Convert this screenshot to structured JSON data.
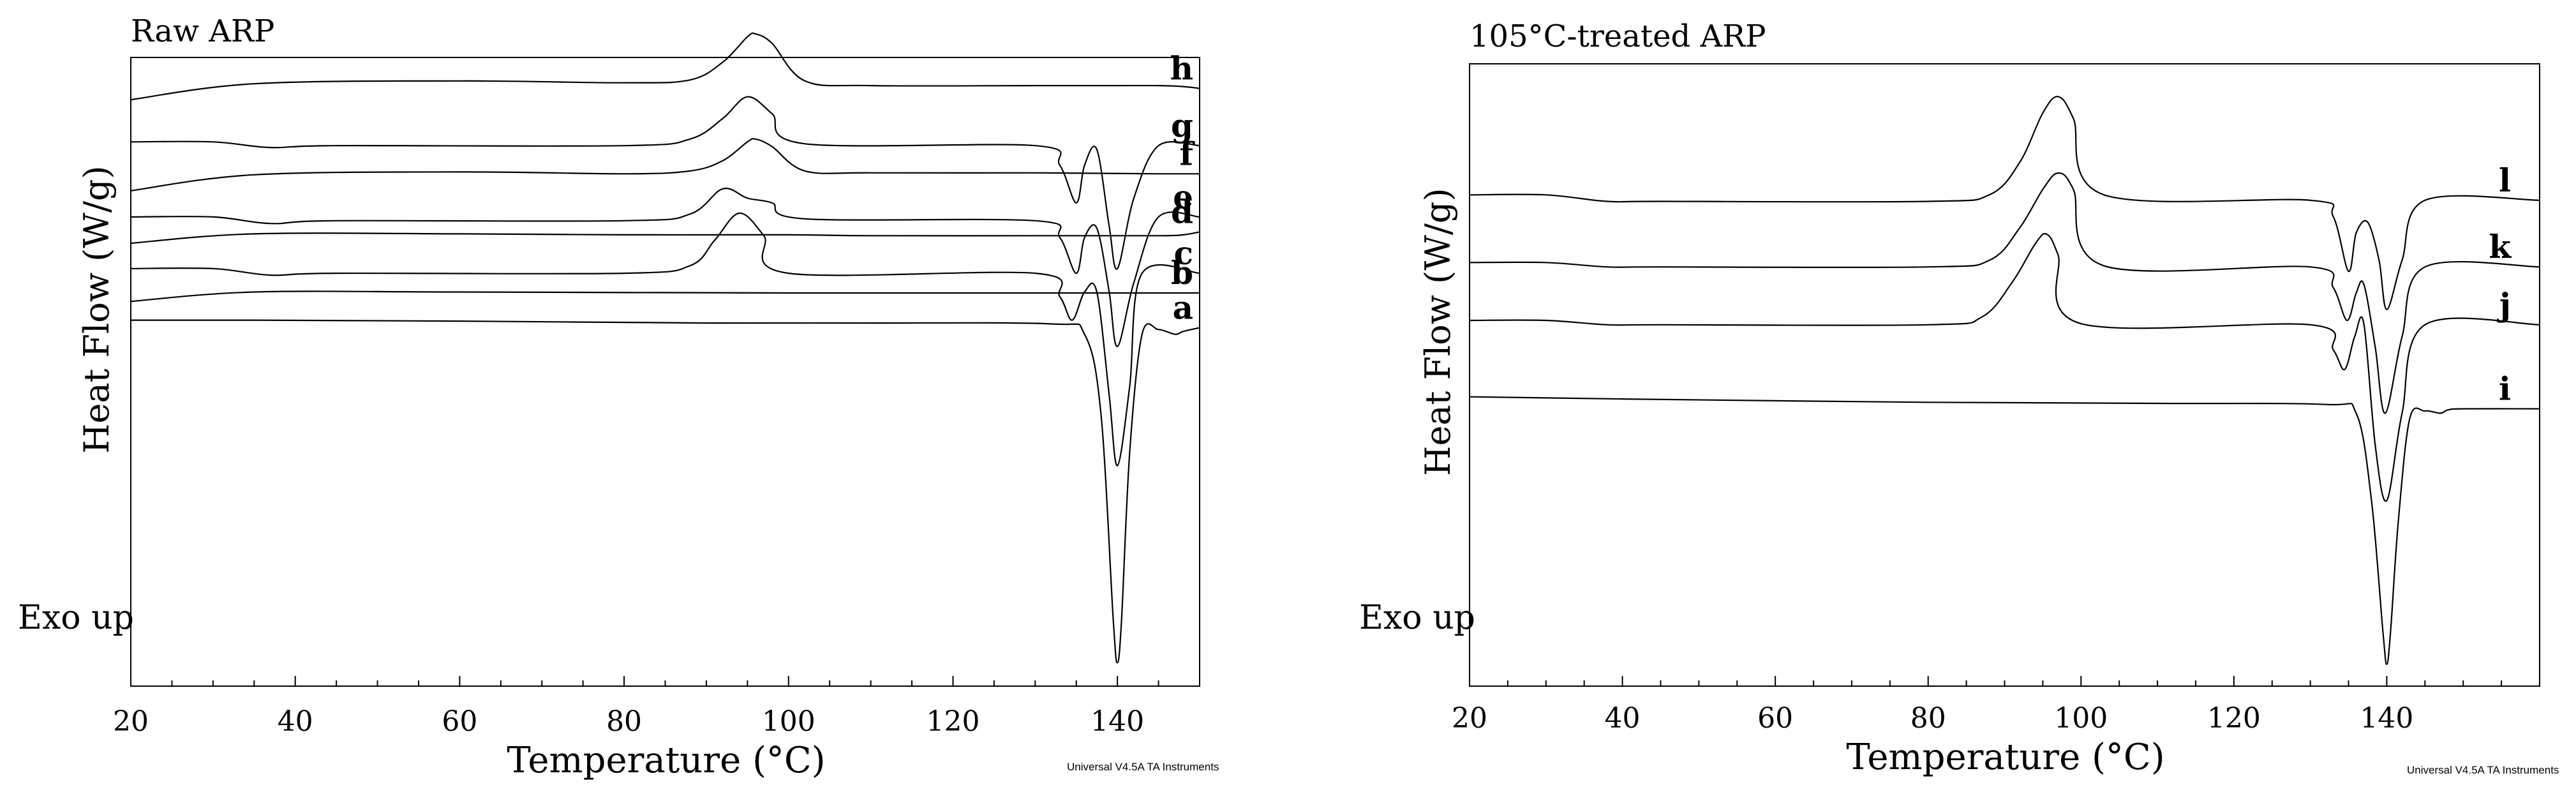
{
  "chart_data": [
    {
      "type": "line",
      "title": "Raw ARP",
      "xlabel": "Temperature (°C)",
      "ylabel": "Heat Flow (W/g)",
      "annotation": "Exo up",
      "software_note": "Universal V4.5A TA Instruments",
      "xlim": [
        20,
        150
      ],
      "ylim": [
        -5.5,
        1.2
      ],
      "xticks": [
        20,
        40,
        60,
        80,
        100,
        120,
        140
      ],
      "grid": false,
      "series": [
        {
          "name": "h",
          "x": [
            20,
            35,
            60,
            80,
            88,
            92,
            95,
            96,
            98,
            102,
            110,
            130,
            140,
            145,
            148,
            150
          ],
          "y": [
            0.75,
            0.92,
            0.95,
            0.93,
            0.96,
            1.15,
            1.42,
            1.45,
            1.35,
            0.95,
            0.9,
            0.9,
            0.9,
            0.9,
            0.89,
            0.87
          ]
        },
        {
          "name": "g",
          "x": [
            20,
            30,
            37,
            45,
            80,
            88,
            92,
            95,
            98,
            102,
            130,
            133,
            135,
            136,
            137.5,
            139,
            140,
            142,
            145,
            150
          ],
          "y": [
            0.3,
            0.3,
            0.24,
            0.26,
            0.26,
            0.33,
            0.55,
            0.78,
            0.6,
            0.28,
            0.26,
            0.05,
            -0.35,
            0.05,
            0.22,
            -0.6,
            -1.05,
            -0.3,
            0.26,
            0.26
          ]
        },
        {
          "name": "f",
          "x": [
            20,
            35,
            60,
            80,
            88,
            92,
            95,
            96,
            98,
            102,
            110,
            130,
            145,
            150
          ],
          "y": [
            -0.22,
            -0.05,
            -0.02,
            -0.04,
            -0.01,
            0.1,
            0.3,
            0.33,
            0.25,
            -0.01,
            -0.03,
            -0.03,
            -0.04,
            -0.04
          ]
        },
        {
          "name": "e",
          "x": [
            20,
            30,
            37,
            45,
            80,
            88,
            92,
            95,
            98,
            102,
            130,
            133,
            135,
            136,
            137.5,
            139,
            140,
            142,
            145,
            150
          ],
          "y": [
            -0.5,
            -0.5,
            -0.57,
            -0.54,
            -0.54,
            -0.47,
            -0.2,
            -0.3,
            -0.35,
            -0.52,
            -0.54,
            -0.72,
            -1.1,
            -0.72,
            -0.62,
            -1.3,
            -1.88,
            -1.2,
            -0.5,
            -0.5
          ]
        },
        {
          "name": "d",
          "x": [
            20,
            35,
            60,
            80,
            100,
            110,
            130,
            145,
            148,
            150
          ],
          "y": [
            -0.78,
            -0.68,
            -0.68,
            -0.69,
            -0.69,
            -0.7,
            -0.7,
            -0.7,
            -0.69,
            -0.66
          ]
        },
        {
          "name": "c",
          "x": [
            20,
            30,
            37,
            45,
            80,
            88,
            91,
            94,
            97,
            100,
            130,
            133,
            134.5,
            136,
            137.5,
            139,
            140,
            141.5,
            143,
            150
          ],
          "y": [
            -1.05,
            -1.05,
            -1.12,
            -1.1,
            -1.1,
            -1.02,
            -0.75,
            -0.46,
            -0.7,
            -1.1,
            -1.1,
            -1.35,
            -1.6,
            -1.3,
            -1.3,
            -2.4,
            -3.15,
            -2.3,
            -1.1,
            -1.1
          ]
        },
        {
          "name": "b",
          "x": [
            20,
            35,
            60,
            100,
            130,
            145,
            150
          ],
          "y": [
            -1.4,
            -1.3,
            -1.3,
            -1.31,
            -1.31,
            -1.31,
            -1.31
          ]
        },
        {
          "name": "a",
          "x": [
            20,
            35,
            60,
            90,
            110,
            132,
            136,
            138,
            139.5,
            140,
            140.5,
            141.5,
            143,
            145,
            147,
            148,
            150
          ],
          "y": [
            -1.6,
            -1.6,
            -1.61,
            -1.63,
            -1.63,
            -1.64,
            -1.75,
            -2.6,
            -4.8,
            -5.25,
            -4.8,
            -3.0,
            -1.75,
            -1.7,
            -1.75,
            -1.72,
            -1.68
          ]
        }
      ]
    },
    {
      "type": "line",
      "title": "105°C-treated ARP",
      "xlabel": "Temperature (°C)",
      "ylabel": "Heat Flow (W/g)",
      "annotation": "Exo up",
      "software_note": "Universal V4.5A TA Instruments",
      "xlim": [
        20,
        160
      ],
      "ylim": [
        -4.5,
        1.2
      ],
      "xticks": [
        20,
        40,
        60,
        80,
        100,
        120,
        140
      ],
      "grid": false,
      "series": [
        {
          "name": "l",
          "x": [
            20,
            30,
            38,
            45,
            80,
            88,
            92,
            95,
            97,
            99,
            103,
            130,
            133,
            135,
            136,
            137.5,
            139,
            140,
            142,
            145,
            160
          ],
          "y": [
            0.0,
            0.0,
            -0.06,
            -0.06,
            -0.06,
            0.0,
            0.3,
            0.75,
            0.9,
            0.7,
            0.0,
            -0.05,
            -0.2,
            -0.7,
            -0.35,
            -0.25,
            -0.6,
            -1.05,
            -0.6,
            -0.05,
            -0.05
          ]
        },
        {
          "name": "k",
          "x": [
            20,
            30,
            38,
            45,
            80,
            88,
            92,
            95,
            97,
            99,
            103,
            130,
            133,
            134.8,
            136,
            137,
            138.5,
            139.8,
            142,
            145,
            160
          ],
          "y": [
            -0.62,
            -0.62,
            -0.66,
            -0.66,
            -0.66,
            -0.6,
            -0.3,
            0.05,
            0.2,
            0.05,
            -0.65,
            -0.66,
            -0.85,
            -1.15,
            -0.9,
            -0.82,
            -1.4,
            -2.0,
            -1.3,
            -0.66,
            -0.66
          ]
        },
        {
          "name": "j",
          "x": [
            20,
            30,
            38,
            45,
            80,
            87,
            91,
            94,
            95.5,
            97,
            100,
            130,
            133,
            134.5,
            135.8,
            137,
            138.5,
            140,
            142,
            145,
            160
          ],
          "y": [
            -1.15,
            -1.15,
            -1.19,
            -1.19,
            -1.19,
            -1.12,
            -0.8,
            -0.45,
            -0.36,
            -0.55,
            -1.18,
            -1.19,
            -1.42,
            -1.6,
            -1.3,
            -1.18,
            -2.3,
            -2.8,
            -2.0,
            -1.19,
            -1.19
          ]
        },
        {
          "name": "i",
          "x": [
            20,
            40,
            80,
            110,
            132,
            136,
            138,
            139.5,
            140,
            140.5,
            141.5,
            143,
            145,
            147,
            148,
            150,
            160
          ],
          "y": [
            -1.85,
            -1.87,
            -1.9,
            -1.91,
            -1.92,
            -2.0,
            -2.8,
            -4.0,
            -4.3,
            -4.0,
            -3.0,
            -2.05,
            -1.98,
            -2.0,
            -1.97,
            -1.96,
            -1.96
          ]
        }
      ]
    }
  ]
}
